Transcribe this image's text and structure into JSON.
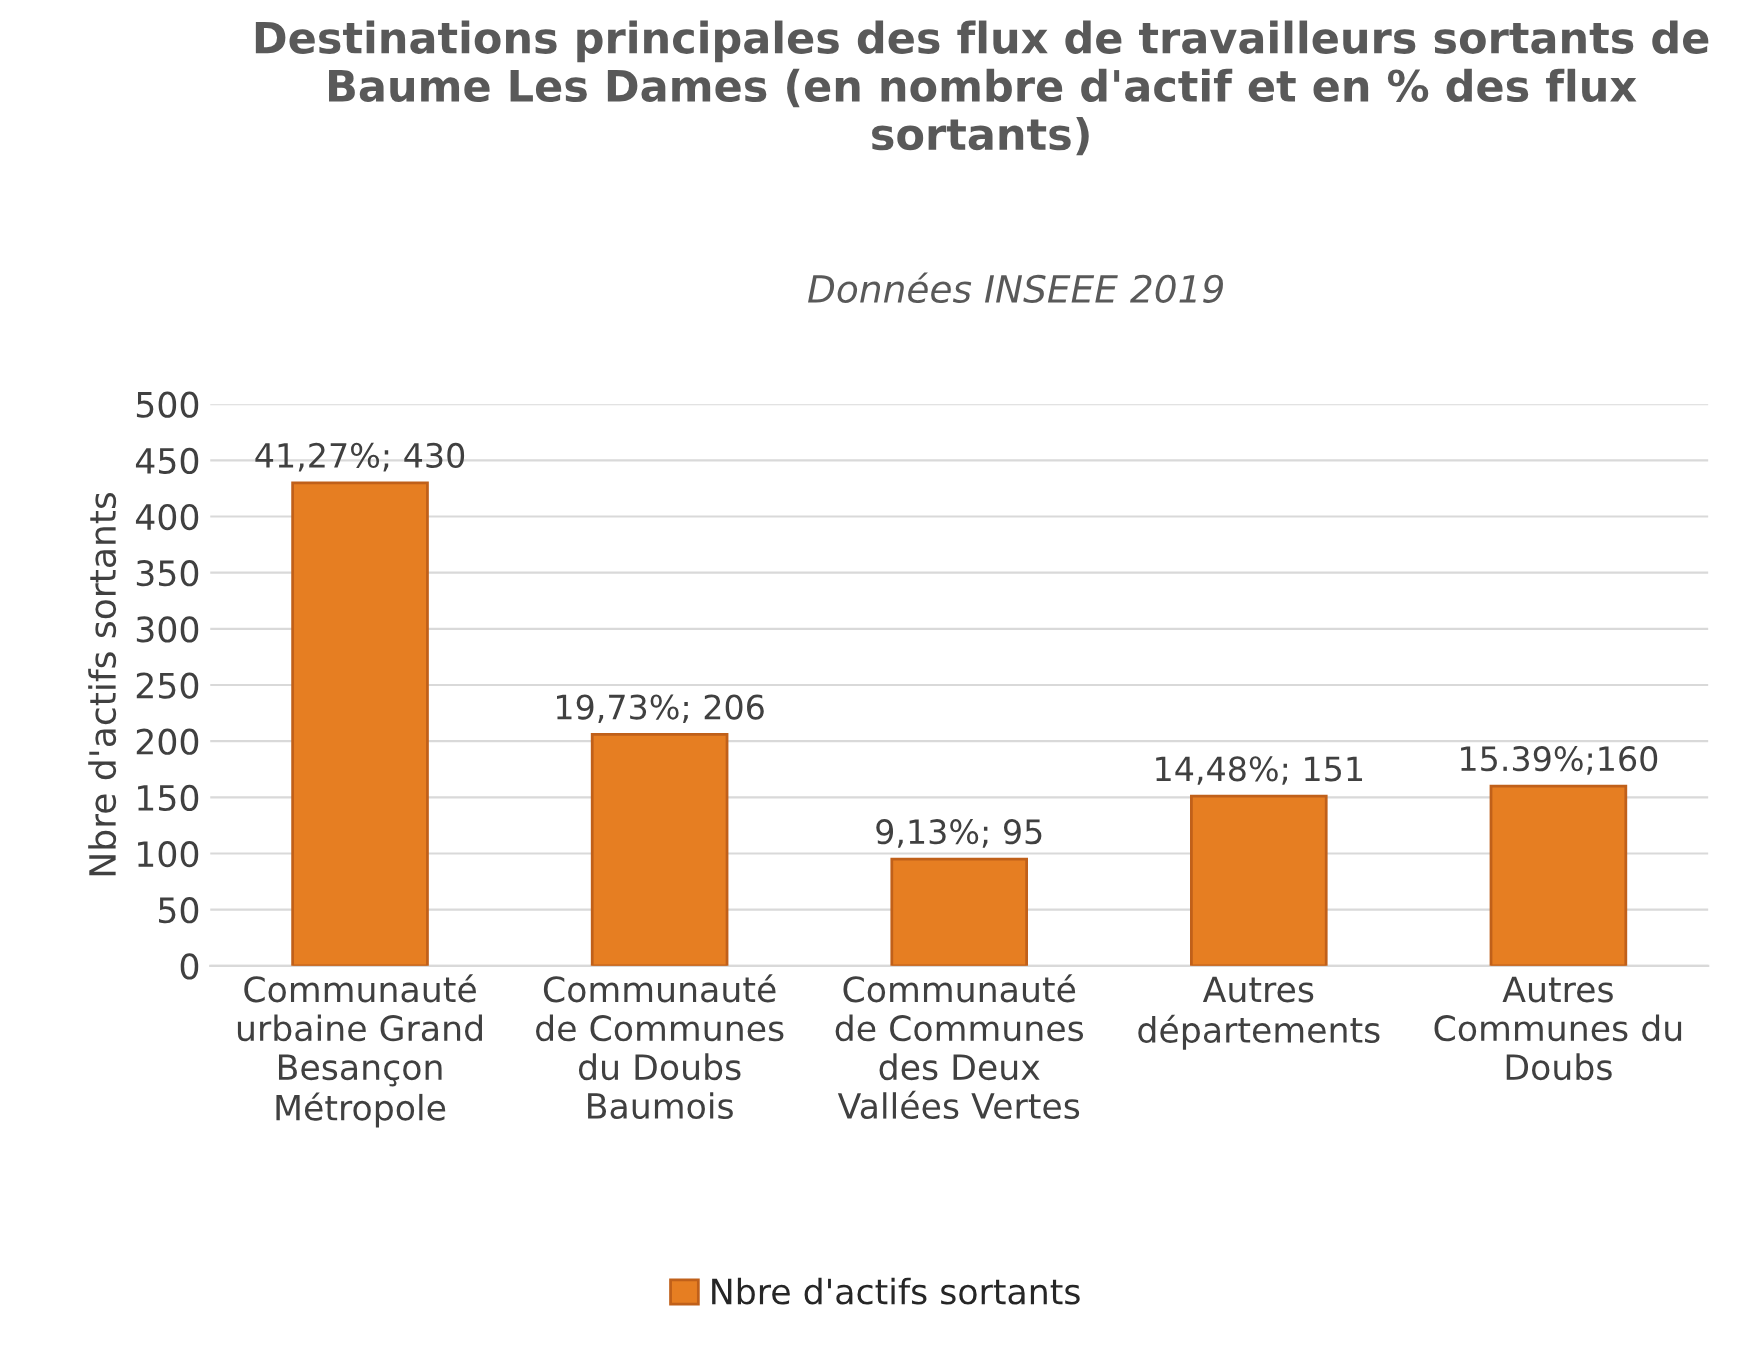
{
  "chart_data": {
    "type": "bar",
    "title": "Destinations principales des flux de travailleurs sortants de Baume Les Dames (en nombre d'actif et en % des flux sortants)",
    "subtitle": "Données INSEEE 2019",
    "categories": [
      "Communauté\nurbaine Grand\nBesançon\nMétropole",
      "Communauté\nde Communes\ndu Doubs\nBaumois",
      "Communauté\nde Communes\ndes Deux\nVallées Vertes",
      "Autres\ndépartements",
      "Autres\nCommunes du\nDoubs"
    ],
    "series": [
      {
        "name": "Nbre d'actifs sortants",
        "color": "#e67e22",
        "values": [
          430,
          206,
          95,
          151,
          160
        ],
        "value_labels": [
          "41,27%; 430",
          "19,73%; 206",
          "9,13%; 95",
          "14,48%; 151",
          "15.39%;160"
        ]
      }
    ],
    "ylabel": "Nbre d'actifs sortants",
    "ylim": [
      0,
      500
    ],
    "yticks": [
      0,
      50,
      100,
      150,
      200,
      250,
      300,
      350,
      400,
      450,
      500
    ],
    "grid": "y",
    "legend": "bottom"
  }
}
